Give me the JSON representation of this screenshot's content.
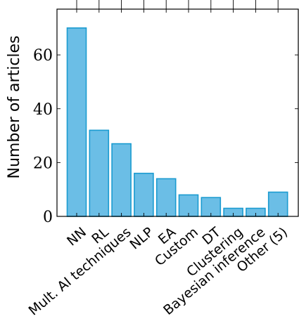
{
  "chart_data": {
    "type": "bar",
    "categories": [
      "NN",
      "RL",
      "Mult. AI techniques",
      "NLP",
      "EA",
      "Custom",
      "DT",
      "Clustering",
      "Bayesian inference",
      "Other (5)"
    ],
    "values": [
      70,
      32,
      27,
      16,
      14,
      8,
      7,
      3,
      3,
      9
    ],
    "ylabel": "Number of articles",
    "xlabel": "",
    "ylim": [
      0,
      77
    ],
    "yticks": [
      0,
      20,
      40,
      60
    ],
    "grid": false,
    "bar_color": "#6bbee6",
    "bar_edge_color": "#1b9bd0"
  }
}
